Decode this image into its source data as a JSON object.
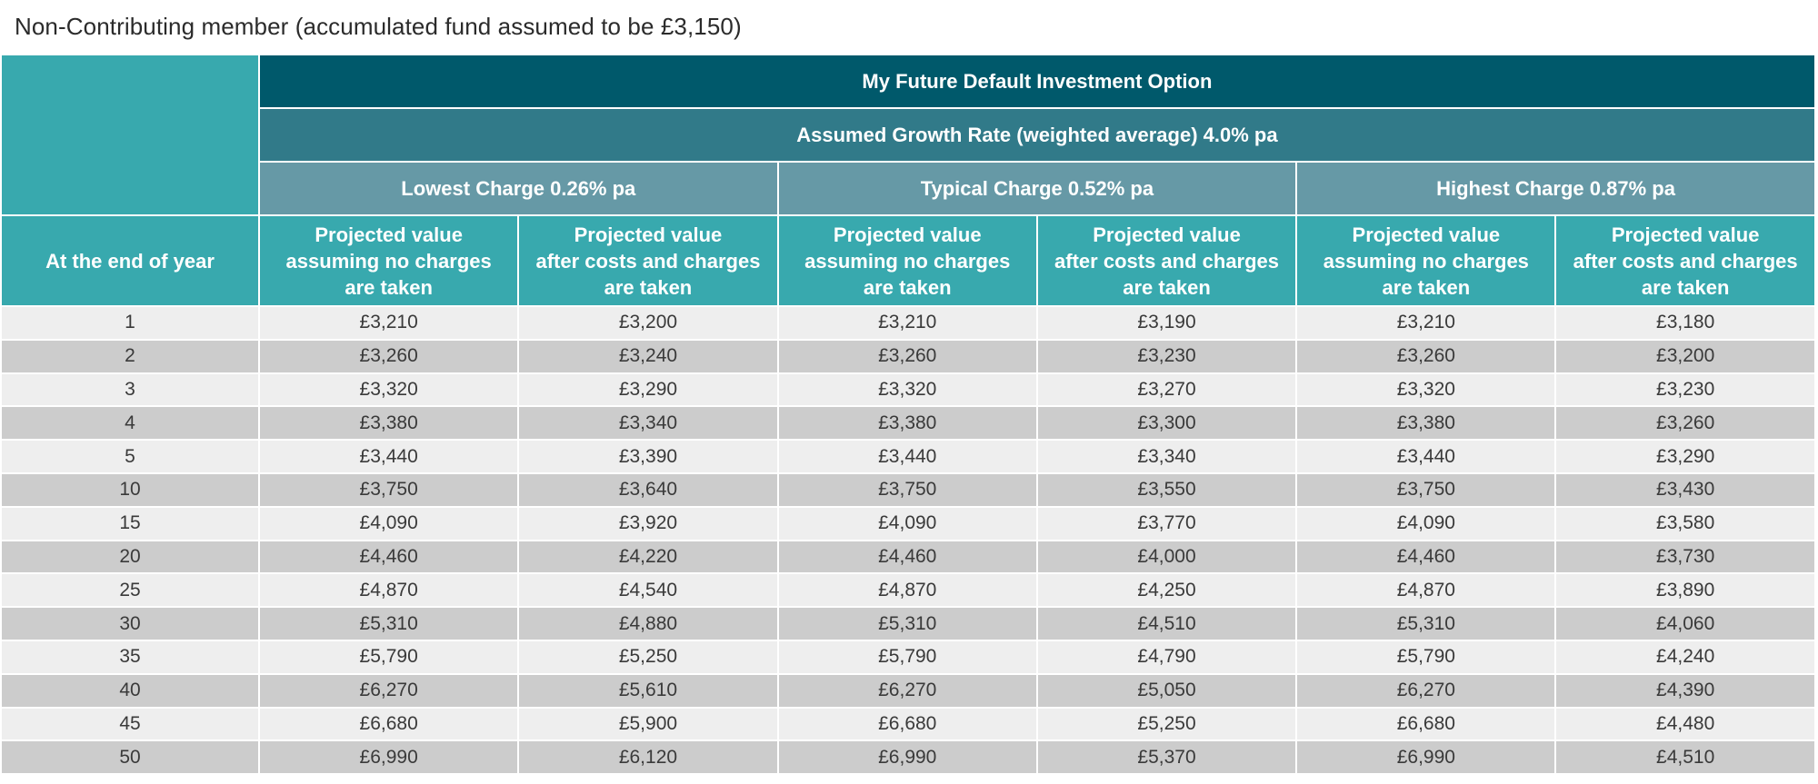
{
  "caption": "Non-Contributing member (accumulated fund assumed to be £3,150)",
  "header": {
    "title": "My Future Default Investment Option",
    "growth": "Assumed Growth Rate (weighted average) 4.0% pa",
    "year_label": "At the end of year",
    "charges": [
      "Lowest Charge 0.26% pa",
      "Typical Charge 0.52% pa",
      "Highest Charge 0.87% pa"
    ],
    "col_no_charges": [
      "Projected value",
      "assuming no charges",
      "are taken"
    ],
    "col_after_costs": [
      "Projected value",
      "after costs and charges",
      "are taken"
    ]
  },
  "rows": [
    [
      "1",
      "£3,210",
      "£3,200",
      "£3,210",
      "£3,190",
      "£3,210",
      "£3,180"
    ],
    [
      "2",
      "£3,260",
      "£3,240",
      "£3,260",
      "£3,230",
      "£3,260",
      "£3,200"
    ],
    [
      "3",
      "£3,320",
      "£3,290",
      "£3,320",
      "£3,270",
      "£3,320",
      "£3,230"
    ],
    [
      "4",
      "£3,380",
      "£3,340",
      "£3,380",
      "£3,300",
      "£3,380",
      "£3,260"
    ],
    [
      "5",
      "£3,440",
      "£3,390",
      "£3,440",
      "£3,340",
      "£3,440",
      "£3,290"
    ],
    [
      "10",
      "£3,750",
      "£3,640",
      "£3,750",
      "£3,550",
      "£3,750",
      "£3,430"
    ],
    [
      "15",
      "£4,090",
      "£3,920",
      "£4,090",
      "£3,770",
      "£4,090",
      "£3,580"
    ],
    [
      "20",
      "£4,460",
      "£4,220",
      "£4,460",
      "£4,000",
      "£4,460",
      "£3,730"
    ],
    [
      "25",
      "£4,870",
      "£4,540",
      "£4,870",
      "£4,250",
      "£4,870",
      "£3,890"
    ],
    [
      "30",
      "£5,310",
      "£4,880",
      "£5,310",
      "£4,510",
      "£5,310",
      "£4,060"
    ],
    [
      "35",
      "£5,790",
      "£5,250",
      "£5,790",
      "£4,790",
      "£5,790",
      "£4,240"
    ],
    [
      "40",
      "£6,270",
      "£5,610",
      "£6,270",
      "£5,050",
      "£6,270",
      "£4,390"
    ],
    [
      "45",
      "£6,680",
      "£5,900",
      "£6,680",
      "£5,250",
      "£6,680",
      "£4,480"
    ],
    [
      "50",
      "£6,990",
      "£6,120",
      "£6,990",
      "£5,370",
      "£6,990",
      "£4,510"
    ]
  ]
}
